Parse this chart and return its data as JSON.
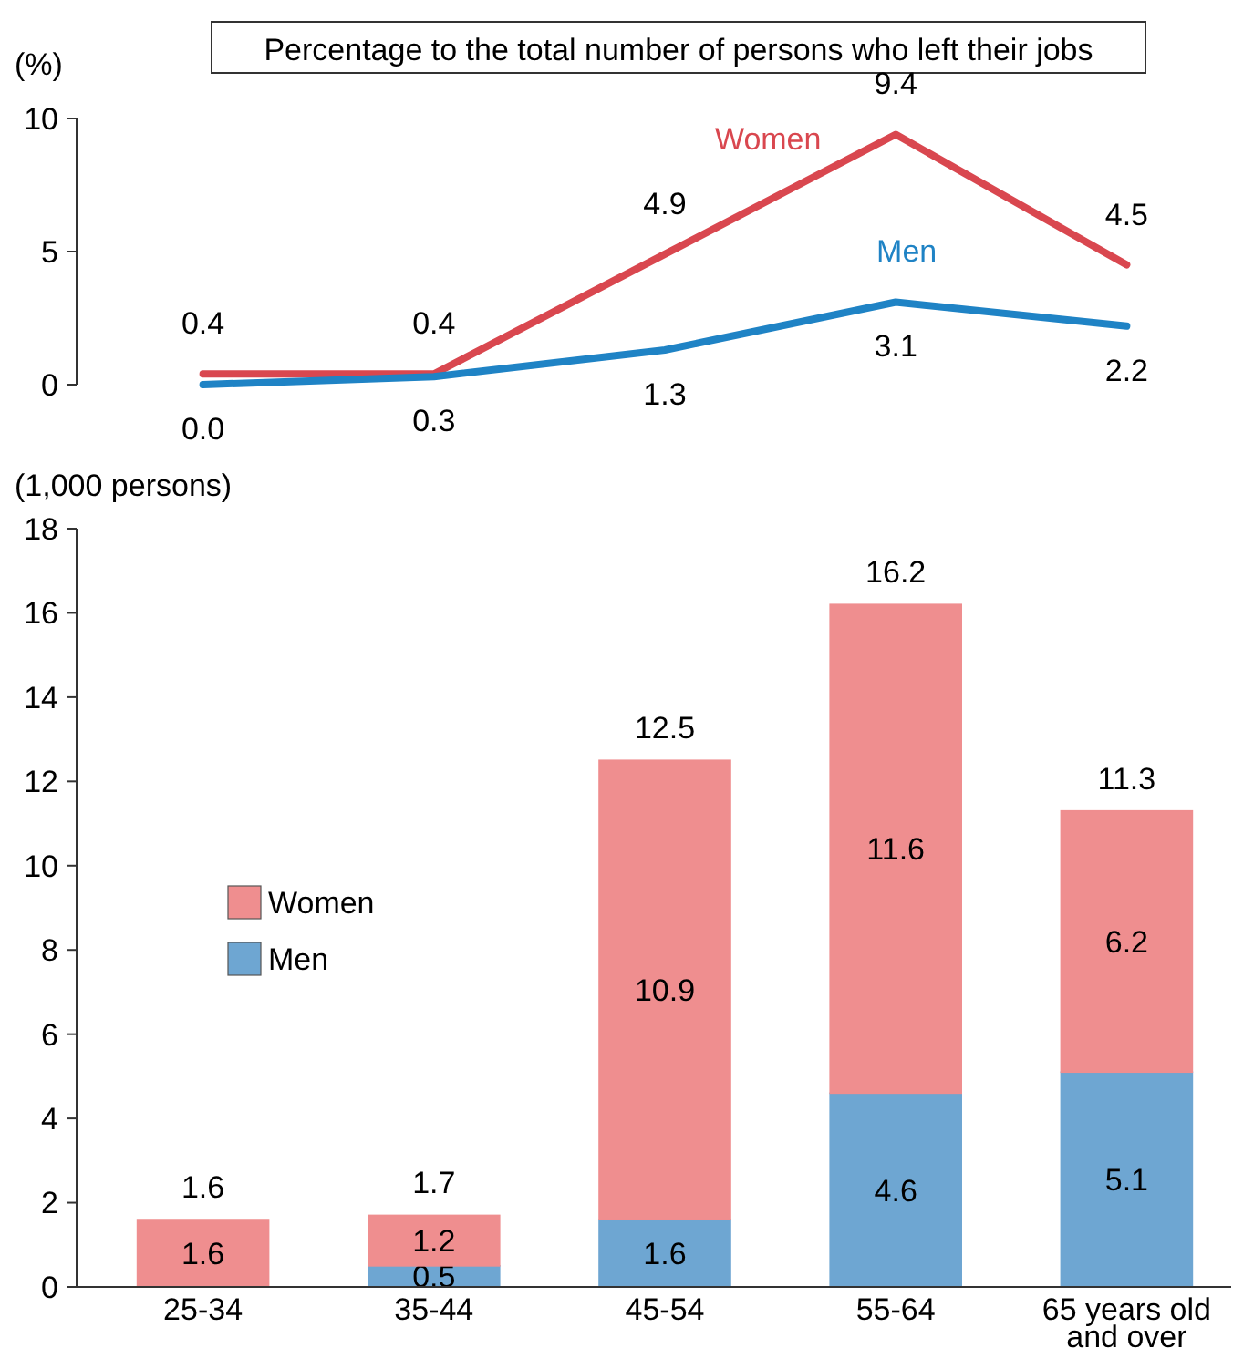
{
  "chart_data": [
    {
      "type": "line",
      "title": "Percentage to the total number of persons who left their jobs",
      "ylabel": "(%)",
      "categories": [
        null,
        null,
        null,
        null,
        null
      ],
      "ylim": [
        0,
        10
      ],
      "yticks": [
        0,
        5,
        10
      ],
      "tick_labels": "y",
      "grid": false,
      "marker": "none",
      "series": [
        {
          "name": "Women",
          "color": "#d9474f",
          "values": [
            0.4,
            0.4,
            4.9,
            9.4,
            4.5
          ],
          "value_labels": [
            "0.4",
            "0.4",
            "4.9",
            "9.4",
            "4.5"
          ]
        },
        {
          "name": "Men",
          "color": "#1f83c5",
          "values": [
            0.0,
            0.3,
            1.3,
            3.1,
            2.2
          ],
          "value_labels": [
            "0.0",
            "0.3",
            "1.3",
            "3.1",
            "2.2"
          ]
        }
      ]
    },
    {
      "type": "bar",
      "stacked": true,
      "ylabel": "(1,000 persons)",
      "categories": [
        "25-34",
        "35-44",
        "45-54",
        "55-64",
        "65 years old\nand over"
      ],
      "ylim": [
        0,
        18
      ],
      "yticks": [
        0,
        2,
        4,
        6,
        8,
        10,
        12,
        14,
        16,
        18
      ],
      "grid": false,
      "legend": "left",
      "totals": [
        "1.6",
        "1.7",
        "12.5",
        "16.2",
        "11.3"
      ],
      "series": [
        {
          "name": "Men",
          "color": "#6ea6d2",
          "values": [
            0,
            0.5,
            1.6,
            4.6,
            5.1
          ],
          "value_labels": [
            null,
            "0.5",
            "1.6",
            "4.6",
            "5.1"
          ]
        },
        {
          "name": "Women",
          "color": "#ef8e8f",
          "values": [
            1.6,
            1.2,
            10.9,
            11.6,
            6.2
          ],
          "value_labels": [
            "1.6",
            "1.2",
            "10.9",
            "11.6",
            "6.2"
          ]
        }
      ]
    }
  ]
}
